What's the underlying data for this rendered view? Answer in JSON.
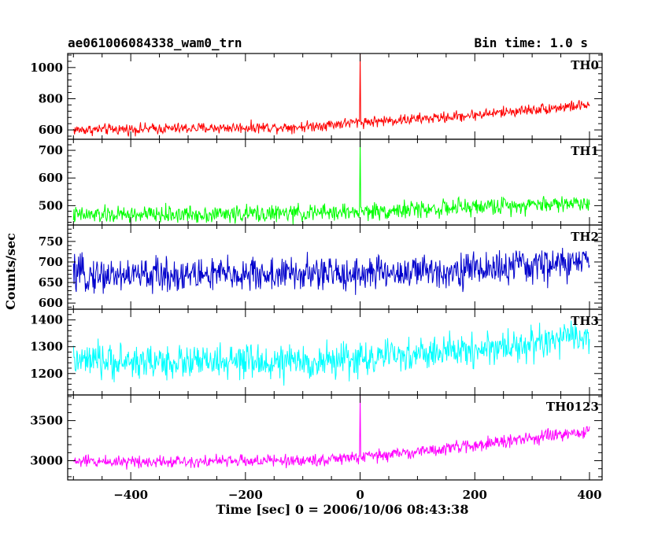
{
  "header": {
    "title_left": "ae061006084338_wam0_trn",
    "title_right": "Bin time: 1.0 s"
  },
  "xlabel": "Time [sec] 0 = 2006/10/06 08:43:38",
  "ylabel": "Counts/sec",
  "chart_data": [
    {
      "type": "line",
      "name": "TH0",
      "color": "#ff0000",
      "xlim": [
        -510,
        422
      ],
      "ylim": [
        540,
        1090
      ],
      "yticks": [
        600,
        800,
        1000
      ],
      "x_start": -500,
      "x_end": 400,
      "step": 1,
      "baseline": [
        [
          -500,
          600
        ],
        [
          -100,
          620
        ],
        [
          0,
          650
        ],
        [
          150,
          680
        ],
        [
          300,
          730
        ],
        [
          400,
          760
        ]
      ],
      "noise": 25,
      "spike": {
        "x": 0,
        "y": 1090
      },
      "grid": false
    },
    {
      "type": "line",
      "name": "TH1",
      "color": "#00ff00",
      "xlim": [
        -510,
        422
      ],
      "ylim": [
        430,
        740
      ],
      "yticks": [
        500,
        600,
        700
      ],
      "x_start": -500,
      "x_end": 400,
      "step": 1,
      "baseline": [
        [
          -500,
          465
        ],
        [
          -100,
          472
        ],
        [
          0,
          478
        ],
        [
          150,
          490
        ],
        [
          300,
          505
        ],
        [
          400,
          510
        ]
      ],
      "noise": 22,
      "spike": {
        "x": 0,
        "y": 740
      },
      "grid": false
    },
    {
      "type": "line",
      "name": "TH2",
      "color": "#0000cc",
      "xlim": [
        -510,
        422
      ],
      "ylim": [
        585,
        790
      ],
      "yticks": [
        600,
        650,
        700,
        750
      ],
      "x_start": -500,
      "x_end": 400,
      "step": 1,
      "baseline": [
        [
          -500,
          668
        ],
        [
          -100,
          670
        ],
        [
          100,
          675
        ],
        [
          300,
          690
        ],
        [
          400,
          700
        ]
      ],
      "noise": 30,
      "spike": null,
      "grid": false
    },
    {
      "type": "line",
      "name": "TH3",
      "color": "#00ffff",
      "xlim": [
        -510,
        422
      ],
      "ylim": [
        1120,
        1440
      ],
      "yticks": [
        1200,
        1300,
        1400
      ],
      "x_start": -500,
      "x_end": 400,
      "step": 1,
      "baseline": [
        [
          -500,
          1245
        ],
        [
          -100,
          1240
        ],
        [
          100,
          1270
        ],
        [
          300,
          1310
        ],
        [
          400,
          1340
        ]
      ],
      "noise": 45,
      "spike": null,
      "grid": false
    },
    {
      "type": "line",
      "name": "TH0123",
      "color": "#ff00ff",
      "xlim": [
        -510,
        422
      ],
      "ylim": [
        2760,
        3820
      ],
      "yticks": [
        3000,
        3500
      ],
      "x_start": -500,
      "x_end": 400,
      "step": 1,
      "baseline": [
        [
          -500,
          2990
        ],
        [
          -100,
          3000
        ],
        [
          0,
          3040
        ],
        [
          150,
          3150
        ],
        [
          300,
          3280
        ],
        [
          400,
          3360
        ]
      ],
      "noise": 55,
      "spike": {
        "x": 0,
        "y": 3820
      },
      "grid": false
    }
  ],
  "xticks": [
    -400,
    -200,
    0,
    200,
    400
  ]
}
